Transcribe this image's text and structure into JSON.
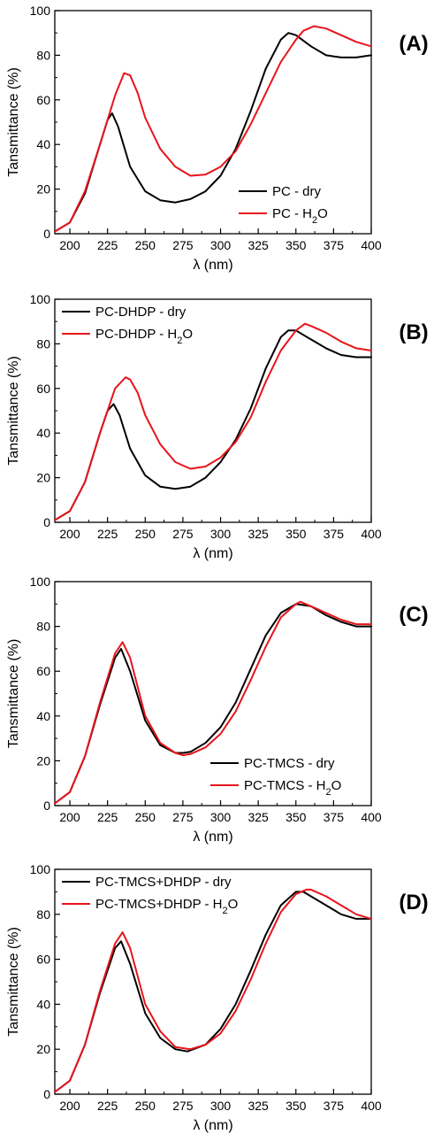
{
  "chart_data": [
    {
      "type": "line",
      "panel_label": "(A)",
      "xlabel": "λ (nm)",
      "ylabel": "Tansmittance (%)",
      "xlim": [
        190,
        400
      ],
      "ylim": [
        0,
        100
      ],
      "xticks": [
        200,
        225,
        250,
        275,
        300,
        325,
        350,
        375,
        400
      ],
      "yticks": [
        0,
        20,
        40,
        60,
        80,
        100
      ],
      "grid": false,
      "legend_placement": "bottom-right",
      "series": [
        {
          "name": "PC - dry",
          "color": "#000000",
          "x": [
            190,
            200,
            210,
            220,
            225,
            228,
            232,
            240,
            250,
            260,
            270,
            280,
            290,
            300,
            310,
            320,
            330,
            340,
            345,
            350,
            360,
            370,
            380,
            390,
            400
          ],
          "y": [
            1,
            5,
            18,
            40,
            51,
            54,
            48,
            30,
            19,
            15,
            14,
            15.5,
            19,
            26,
            38,
            55,
            74,
            87,
            90,
            89,
            84,
            80,
            79,
            79,
            80
          ]
        },
        {
          "name": "PC - H2O",
          "color": "#e8141b",
          "x": [
            190,
            200,
            210,
            220,
            230,
            236,
            240,
            245,
            250,
            260,
            270,
            280,
            290,
            300,
            310,
            320,
            330,
            340,
            350,
            355,
            362,
            370,
            380,
            390,
            400
          ],
          "y": [
            1,
            5,
            19,
            40,
            62,
            72,
            71,
            63,
            52,
            38,
            30,
            26,
            26.5,
            30,
            37,
            49,
            63,
            77,
            87,
            91,
            93,
            92,
            89,
            86,
            84
          ]
        }
      ]
    },
    {
      "type": "line",
      "panel_label": "(B)",
      "xlabel": "λ (nm)",
      "ylabel": "Tansmittance (%)",
      "xlim": [
        190,
        400
      ],
      "ylim": [
        0,
        100
      ],
      "xticks": [
        200,
        225,
        250,
        275,
        300,
        325,
        350,
        375,
        400
      ],
      "yticks": [
        0,
        20,
        40,
        60,
        80,
        100
      ],
      "grid": false,
      "legend_placement": "top-left",
      "series": [
        {
          "name": "PC-DHDP - dry",
          "color": "#000000",
          "x": [
            190,
            200,
            210,
            220,
            225,
            229,
            233,
            240,
            250,
            260,
            270,
            280,
            290,
            300,
            310,
            320,
            330,
            340,
            345,
            350,
            360,
            370,
            380,
            390,
            400
          ],
          "y": [
            1,
            5,
            18,
            40,
            50,
            53,
            48,
            33,
            21,
            16,
            15,
            16,
            20,
            27,
            37,
            51,
            69,
            83,
            86,
            86,
            82,
            78,
            75,
            74,
            74
          ]
        },
        {
          "name": "PC-DHDP - H2O",
          "color": "#e8141b",
          "x": [
            190,
            200,
            210,
            220,
            230,
            237,
            240,
            245,
            250,
            260,
            270,
            280,
            290,
            300,
            310,
            320,
            330,
            340,
            350,
            356,
            360,
            370,
            380,
            390,
            400
          ],
          "y": [
            1,
            5,
            18,
            40,
            60,
            65,
            64,
            58,
            48,
            35,
            27,
            24,
            25,
            29,
            36,
            47,
            63,
            77,
            86,
            89,
            88,
            85,
            81,
            78,
            77
          ]
        }
      ]
    },
    {
      "type": "line",
      "panel_label": "(C)",
      "xlabel": "λ (nm)",
      "ylabel": "Tansmittance (%)",
      "xlim": [
        190,
        400
      ],
      "ylim": [
        0,
        100
      ],
      "xticks": [
        200,
        225,
        250,
        275,
        300,
        325,
        350,
        375,
        400
      ],
      "yticks": [
        0,
        20,
        40,
        60,
        80,
        100
      ],
      "grid": false,
      "legend_placement": "bottom-right",
      "series": [
        {
          "name": "PC-TMCS - dry",
          "color": "#000000",
          "x": [
            190,
            200,
            210,
            220,
            230,
            234,
            240,
            250,
            260,
            270,
            275,
            280,
            290,
            300,
            310,
            320,
            330,
            340,
            350,
            360,
            370,
            380,
            390,
            400
          ],
          "y": [
            1,
            6,
            22,
            45,
            66,
            70,
            60,
            38,
            27,
            23.5,
            23.5,
            24,
            28,
            35,
            46,
            61,
            76,
            86,
            90,
            89,
            85,
            82,
            80,
            80
          ]
        },
        {
          "name": "PC-TMCS - H2O",
          "color": "#e8141b",
          "x": [
            190,
            200,
            210,
            220,
            230,
            235,
            240,
            250,
            260,
            270,
            275,
            280,
            290,
            300,
            310,
            320,
            330,
            340,
            350,
            353,
            360,
            370,
            380,
            390,
            400
          ],
          "y": [
            1,
            6,
            22,
            46,
            68,
            73,
            66,
            40,
            28,
            23.5,
            22.5,
            23,
            26,
            32,
            42,
            56,
            71,
            84,
            90,
            91,
            89,
            86,
            83,
            81,
            81
          ]
        }
      ]
    },
    {
      "type": "line",
      "panel_label": "(D)",
      "xlabel": "λ (nm)",
      "ylabel": "Tansmittance (%)",
      "xlim": [
        190,
        400
      ],
      "ylim": [
        0,
        100
      ],
      "xticks": [
        200,
        225,
        250,
        275,
        300,
        325,
        350,
        375,
        400
      ],
      "yticks": [
        0,
        20,
        40,
        60,
        80,
        100
      ],
      "grid": false,
      "legend_placement": "top-left",
      "series": [
        {
          "name": "PC-TMCS+DHDP - dry",
          "color": "#000000",
          "x": [
            190,
            200,
            210,
            220,
            230,
            234,
            240,
            250,
            260,
            270,
            278,
            290,
            300,
            310,
            320,
            330,
            340,
            350,
            355,
            360,
            370,
            380,
            390,
            400
          ],
          "y": [
            1,
            6,
            22,
            45,
            65,
            68,
            58,
            36,
            25,
            20,
            19,
            22,
            29,
            40,
            55,
            71,
            84,
            90,
            90,
            88,
            84,
            80,
            78,
            78
          ]
        },
        {
          "name": "PC-TMCS+DHDP - H2O",
          "color": "#e8141b",
          "x": [
            190,
            200,
            210,
            220,
            230,
            235,
            240,
            250,
            260,
            270,
            280,
            290,
            300,
            310,
            320,
            330,
            340,
            350,
            357,
            360,
            370,
            380,
            390,
            400
          ],
          "y": [
            1,
            6,
            22,
            46,
            67,
            72,
            65,
            40,
            28,
            21,
            20,
            22,
            27,
            37,
            51,
            67,
            81,
            89,
            91,
            91,
            88,
            84,
            80,
            78
          ]
        }
      ]
    }
  ]
}
